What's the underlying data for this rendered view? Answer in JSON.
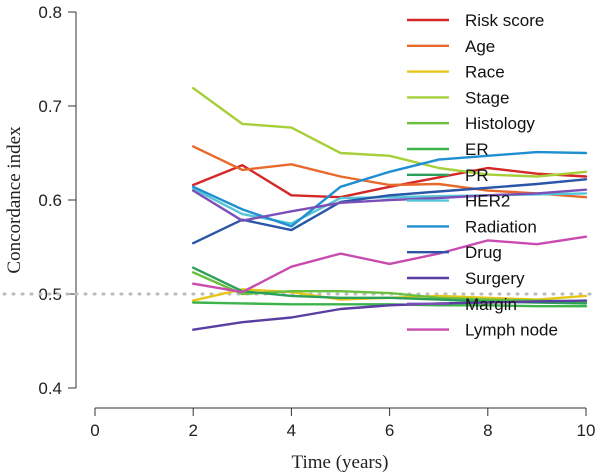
{
  "chart_data": {
    "type": "line",
    "title": "",
    "xlabel": "Time (years)",
    "ylabel": "Concordance index",
    "xlim": [
      0,
      10
    ],
    "ylim": [
      0.4,
      0.8
    ],
    "x_ticks": [
      "0",
      "2",
      "4",
      "6",
      "8",
      "10"
    ],
    "y_ticks": [
      "0.4",
      "0.5",
      "0.6",
      "0.7",
      "0.8"
    ],
    "x": [
      2,
      3,
      4,
      5,
      6,
      7,
      8,
      9,
      10
    ],
    "reference_line": {
      "y": 0.5,
      "color": "#bbbbbb",
      "style": "dotted"
    },
    "legend_position": "top-right",
    "grid": false,
    "series": [
      {
        "name": "Risk score",
        "color": "#d62728",
        "values": [
          0.616,
          0.637,
          0.605,
          0.603,
          0.614,
          0.624,
          0.634,
          0.628,
          0.625
        ]
      },
      {
        "name": "Age",
        "color": "#e8692c",
        "values": [
          0.657,
          0.632,
          0.638,
          0.625,
          0.616,
          0.617,
          0.61,
          0.607,
          0.603
        ]
      },
      {
        "name": "Race",
        "color": "#e6c619",
        "values": [
          0.493,
          0.505,
          0.502,
          0.494,
          0.496,
          0.498,
          0.496,
          0.494,
          0.498
        ]
      },
      {
        "name": "Stage",
        "color": "#a6cf3a",
        "values": [
          0.719,
          0.681,
          0.677,
          0.65,
          0.647,
          0.634,
          0.627,
          0.625,
          0.63
        ]
      },
      {
        "name": "Histology",
        "color": "#6abf3f",
        "values": [
          0.523,
          0.5,
          0.503,
          0.503,
          0.501,
          0.496,
          0.494,
          0.493,
          0.492
        ]
      },
      {
        "name": "ER",
        "color": "#3cb44b",
        "values": [
          0.491,
          0.49,
          0.489,
          0.489,
          0.489,
          0.488,
          0.488,
          0.487,
          0.487
        ]
      },
      {
        "name": "PR",
        "color": "#2ca05a",
        "values": [
          0.528,
          0.503,
          0.498,
          0.496,
          0.496,
          0.494,
          0.492,
          0.491,
          0.49
        ]
      },
      {
        "name": "HER2",
        "color": "#56c5d6",
        "values": [
          0.612,
          0.585,
          0.575,
          0.602,
          0.603,
          0.604,
          0.605,
          0.606,
          0.607
        ]
      },
      {
        "name": "Radiation",
        "color": "#1f8fd1",
        "values": [
          0.614,
          0.59,
          0.572,
          0.614,
          0.63,
          0.643,
          0.647,
          0.651,
          0.65
        ]
      },
      {
        "name": "Drug",
        "color": "#2a55a8",
        "values": [
          0.554,
          0.579,
          0.568,
          0.598,
          0.605,
          0.609,
          0.613,
          0.617,
          0.622
        ]
      },
      {
        "name": "Surgery",
        "color": "#5a3ea3",
        "values": [
          0.462,
          0.47,
          0.475,
          0.484,
          0.488,
          0.49,
          0.491,
          0.492,
          0.493
        ]
      },
      {
        "name": "Margin",
        "color": "#7b4fb8",
        "values": [
          0.61,
          0.578,
          0.588,
          0.597,
          0.6,
          0.602,
          0.605,
          0.607,
          0.611
        ]
      },
      {
        "name": "Lymph node",
        "color": "#c94bb0",
        "values": [
          0.511,
          0.502,
          0.529,
          0.543,
          0.532,
          0.543,
          0.557,
          0.553,
          0.561
        ]
      }
    ]
  }
}
